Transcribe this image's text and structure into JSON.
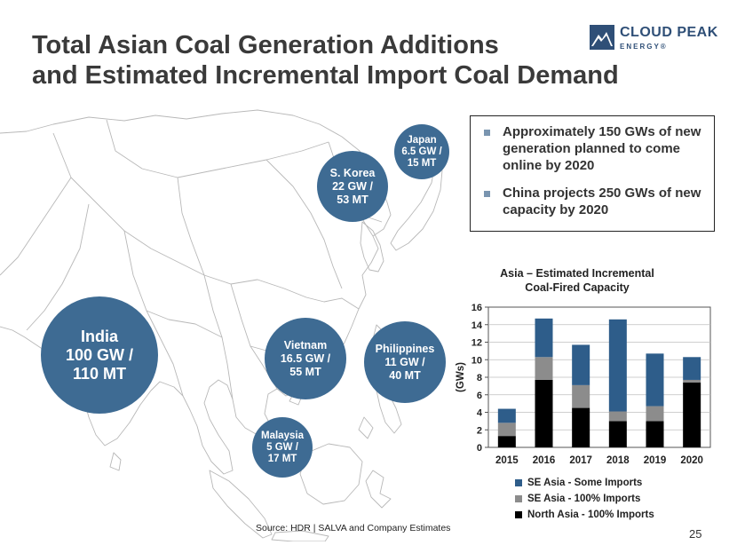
{
  "title": {
    "line1": "Total Asian Coal Generation Additions",
    "line2": "and Estimated Incremental Import Coal Demand"
  },
  "logo": {
    "name": "CLOUD PEAK",
    "sub": "ENERGY®"
  },
  "bullets": [
    "Approximately 150 GWs of new generation planned to come online by 2020",
    "China projects 250 GWs of new capacity by 2020"
  ],
  "bubbles": {
    "india": {
      "l1": "India",
      "l2": "100 GW /",
      "l3": "110 MT"
    },
    "korea": {
      "l1": "S. Korea",
      "l2": "22 GW /",
      "l3": "53 MT"
    },
    "japan": {
      "l1": "Japan",
      "l2": "6.5 GW /",
      "l3": "15 MT"
    },
    "vietnam": {
      "l1": "Vietnam",
      "l2": "16.5 GW /",
      "l3": "55 MT"
    },
    "philippines": {
      "l1": "Philippines",
      "l2": "11 GW /",
      "l3": "40 MT"
    },
    "malaysia": {
      "l1": "Malaysia",
      "l2": "5 GW /",
      "l3": "17 MT"
    }
  },
  "chart_data": {
    "type": "bar",
    "stacked": true,
    "title_line1": "Asia – Estimated Incremental",
    "title_line2": "Coal-Fired Capacity",
    "ylabel": "(GWs)",
    "ylim": [
      0,
      16
    ],
    "yticks": [
      0,
      2,
      4,
      6,
      8,
      10,
      12,
      14,
      16
    ],
    "categories": [
      "2015",
      "2016",
      "2017",
      "2018",
      "2019",
      "2020"
    ],
    "series": [
      {
        "name": "North Asia - 100% Imports",
        "color": "#000000",
        "values": [
          1.3,
          7.7,
          4.5,
          3.0,
          3.0,
          7.4
        ]
      },
      {
        "name": "SE Asia - 100% Imports",
        "color": "#8c8c8c",
        "values": [
          1.5,
          2.6,
          2.6,
          1.1,
          1.7,
          0.3
        ]
      },
      {
        "name": "SE Asia - Some Imports",
        "color": "#2e5d8a",
        "values": [
          1.6,
          4.4,
          4.6,
          10.5,
          6.0,
          2.6
        ]
      }
    ],
    "legend": [
      "SE Asia - Some Imports",
      "SE Asia - 100% Imports",
      "North Asia - 100% Imports"
    ]
  },
  "source": "Source: HDR | SALVA and Company Estimates",
  "page_number": "25"
}
